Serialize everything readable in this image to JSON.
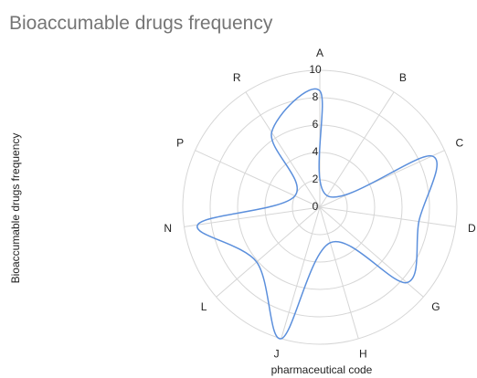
{
  "chart_data": {
    "type": "radar",
    "title": "Bioaccumable drugs frequency",
    "x_label": "pharmaceutical code",
    "y_label": "Bioaccumable drugs frequency",
    "categories": [
      "A",
      "B",
      "C",
      "D",
      "G",
      "H",
      "J",
      "L",
      "N",
      "P",
      "R"
    ],
    "series": [
      {
        "name": "Bioaccumable drugs frequency",
        "color": "#5b8fdc",
        "values": [
          8.5,
          1,
          9,
          7.3,
          8.4,
          2.7,
          10,
          6.1,
          9,
          2,
          6.5
        ]
      }
    ],
    "ylim": [
      0,
      10
    ],
    "yticks": [
      0,
      2,
      4,
      6,
      8,
      10
    ],
    "grid": true
  }
}
